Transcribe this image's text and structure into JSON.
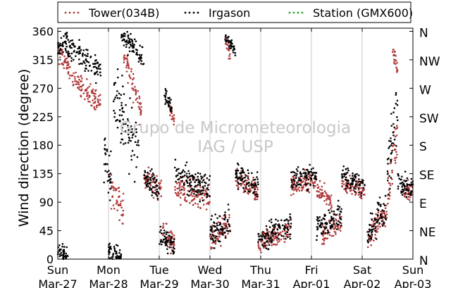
{
  "chart_data": {
    "type": "scatter",
    "title": "",
    "ylabel": "Wind direction (degree)",
    "xlabel": "",
    "ylim": [
      0,
      365
    ],
    "yticks": [
      0,
      45,
      90,
      135,
      180,
      225,
      270,
      315,
      360
    ],
    "ytick_labels": [
      "0",
      "45",
      "90",
      "135",
      "180",
      "225",
      "270",
      "315",
      "360"
    ],
    "compass_labels": [
      {
        "value": 0,
        "label": "N"
      },
      {
        "value": 45,
        "label": "NE"
      },
      {
        "value": 90,
        "label": "E"
      },
      {
        "value": 135,
        "label": "SE"
      },
      {
        "value": 180,
        "label": "S"
      },
      {
        "value": 225,
        "label": "SW"
      },
      {
        "value": 270,
        "label": "W"
      },
      {
        "value": 315,
        "label": "NW"
      },
      {
        "value": 360,
        "label": "N"
      }
    ],
    "x_days": [
      {
        "day": "Sun",
        "date": "Mar-27"
      },
      {
        "day": "Mon",
        "date": "Mar-28"
      },
      {
        "day": "Tue",
        "date": "Mar-29"
      },
      {
        "day": "Wed",
        "date": "Mar-30"
      },
      {
        "day": "Thu",
        "date": "Mar-31"
      },
      {
        "day": "Fri",
        "date": "Apr-01"
      },
      {
        "day": "Sat",
        "date": "Apr-02"
      },
      {
        "day": "Sun",
        "date": "Apr-03"
      }
    ],
    "grid": "vertical",
    "legend_position": "top",
    "watermark": [
      "Grupo de Micrometeorologia",
      "IAG / USP"
    ],
    "series": [
      {
        "name": "Tower(034B)",
        "color": "#b03a3a",
        "clusters": [
          {
            "d0": 0.0,
            "d1": 0.3,
            "v0": 330,
            "v1": 290,
            "s": 14
          },
          {
            "d0": 0.3,
            "d1": 0.85,
            "v0": 285,
            "v1": 245,
            "s": 14
          },
          {
            "d0": 1.3,
            "d1": 1.65,
            "v0": 330,
            "v1": 230,
            "s": 20
          },
          {
            "d0": 1.05,
            "d1": 1.3,
            "v0": 110,
            "v1": 75,
            "s": 25
          },
          {
            "d0": 1.7,
            "d1": 2.05,
            "v0": 130,
            "v1": 110,
            "s": 15
          },
          {
            "d0": 2.05,
            "d1": 2.3,
            "v0": 50,
            "v1": 20,
            "s": 15
          },
          {
            "d0": 2.2,
            "d1": 2.3,
            "v0": 240,
            "v1": 220,
            "s": 8
          },
          {
            "d0": 2.3,
            "d1": 3.0,
            "v0": 110,
            "v1": 100,
            "s": 18
          },
          {
            "d0": 3.0,
            "d1": 3.4,
            "v0": 30,
            "v1": 55,
            "s": 18
          },
          {
            "d0": 3.3,
            "d1": 3.4,
            "v0": 345,
            "v1": 320,
            "s": 10
          },
          {
            "d0": 3.5,
            "d1": 3.95,
            "v0": 125,
            "v1": 105,
            "s": 15
          },
          {
            "d0": 3.95,
            "d1": 4.6,
            "v0": 25,
            "v1": 45,
            "s": 15
          },
          {
            "d0": 4.6,
            "d1": 5.1,
            "v0": 115,
            "v1": 125,
            "s": 14
          },
          {
            "d0": 5.1,
            "d1": 5.4,
            "v0": 110,
            "v1": 90,
            "s": 14
          },
          {
            "d0": 5.2,
            "d1": 5.6,
            "v0": 40,
            "v1": 60,
            "s": 15
          },
          {
            "d0": 5.6,
            "d1": 6.05,
            "v0": 120,
            "v1": 110,
            "s": 14
          },
          {
            "d0": 6.1,
            "d1": 6.5,
            "v0": 30,
            "v1": 80,
            "s": 18
          },
          {
            "d0": 6.5,
            "d1": 6.7,
            "v0": 100,
            "v1": 200,
            "s": 40
          },
          {
            "d0": 6.6,
            "d1": 6.7,
            "v0": 330,
            "v1": 300,
            "s": 10
          },
          {
            "d0": 6.8,
            "d1": 7.0,
            "v0": 110,
            "v1": 105,
            "s": 14
          }
        ]
      },
      {
        "name": "Irgason",
        "color": "#000000",
        "clusters": [
          {
            "d0": 0.0,
            "d1": 0.2,
            "v0": 330,
            "v1": 350,
            "s": 15
          },
          {
            "d0": 0.0,
            "d1": 0.2,
            "v0": 15,
            "v1": 5,
            "s": 10
          },
          {
            "d0": 0.2,
            "d1": 0.85,
            "v0": 335,
            "v1": 300,
            "s": 18
          },
          {
            "d0": 0.9,
            "d1": 1.05,
            "v0": 170,
            "v1": 120,
            "s": 35
          },
          {
            "d0": 1.0,
            "d1": 1.25,
            "v0": 15,
            "v1": 5,
            "s": 10
          },
          {
            "d0": 1.25,
            "d1": 1.7,
            "v0": 350,
            "v1": 320,
            "s": 15
          },
          {
            "d0": 1.1,
            "d1": 1.6,
            "v0": 270,
            "v1": 160,
            "s": 45
          },
          {
            "d0": 1.7,
            "d1": 2.0,
            "v0": 135,
            "v1": 110,
            "s": 18
          },
          {
            "d0": 2.0,
            "d1": 2.3,
            "v0": 40,
            "v1": 20,
            "s": 15
          },
          {
            "d0": 2.1,
            "d1": 2.25,
            "v0": 260,
            "v1": 240,
            "s": 10
          },
          {
            "d0": 2.3,
            "d1": 3.0,
            "v0": 130,
            "v1": 110,
            "s": 20
          },
          {
            "d0": 3.0,
            "d1": 3.4,
            "v0": 40,
            "v1": 60,
            "s": 20
          },
          {
            "d0": 3.3,
            "d1": 3.5,
            "v0": 350,
            "v1": 330,
            "s": 10
          },
          {
            "d0": 3.5,
            "d1": 3.95,
            "v0": 135,
            "v1": 115,
            "s": 16
          },
          {
            "d0": 3.95,
            "d1": 4.6,
            "v0": 30,
            "v1": 55,
            "s": 18
          },
          {
            "d0": 4.6,
            "d1": 5.1,
            "v0": 125,
            "v1": 135,
            "s": 16
          },
          {
            "d0": 5.1,
            "d1": 5.6,
            "v0": 50,
            "v1": 70,
            "s": 18
          },
          {
            "d0": 5.6,
            "d1": 6.05,
            "v0": 130,
            "v1": 115,
            "s": 16
          },
          {
            "d0": 6.1,
            "d1": 6.5,
            "v0": 40,
            "v1": 90,
            "s": 22
          },
          {
            "d0": 6.5,
            "d1": 6.7,
            "v0": 120,
            "v1": 250,
            "s": 45
          },
          {
            "d0": 6.7,
            "d1": 7.0,
            "v0": 120,
            "v1": 110,
            "s": 16
          }
        ]
      },
      {
        "name": "Station (GMX600)",
        "color": "#2ca02c",
        "clusters": []
      }
    ]
  }
}
